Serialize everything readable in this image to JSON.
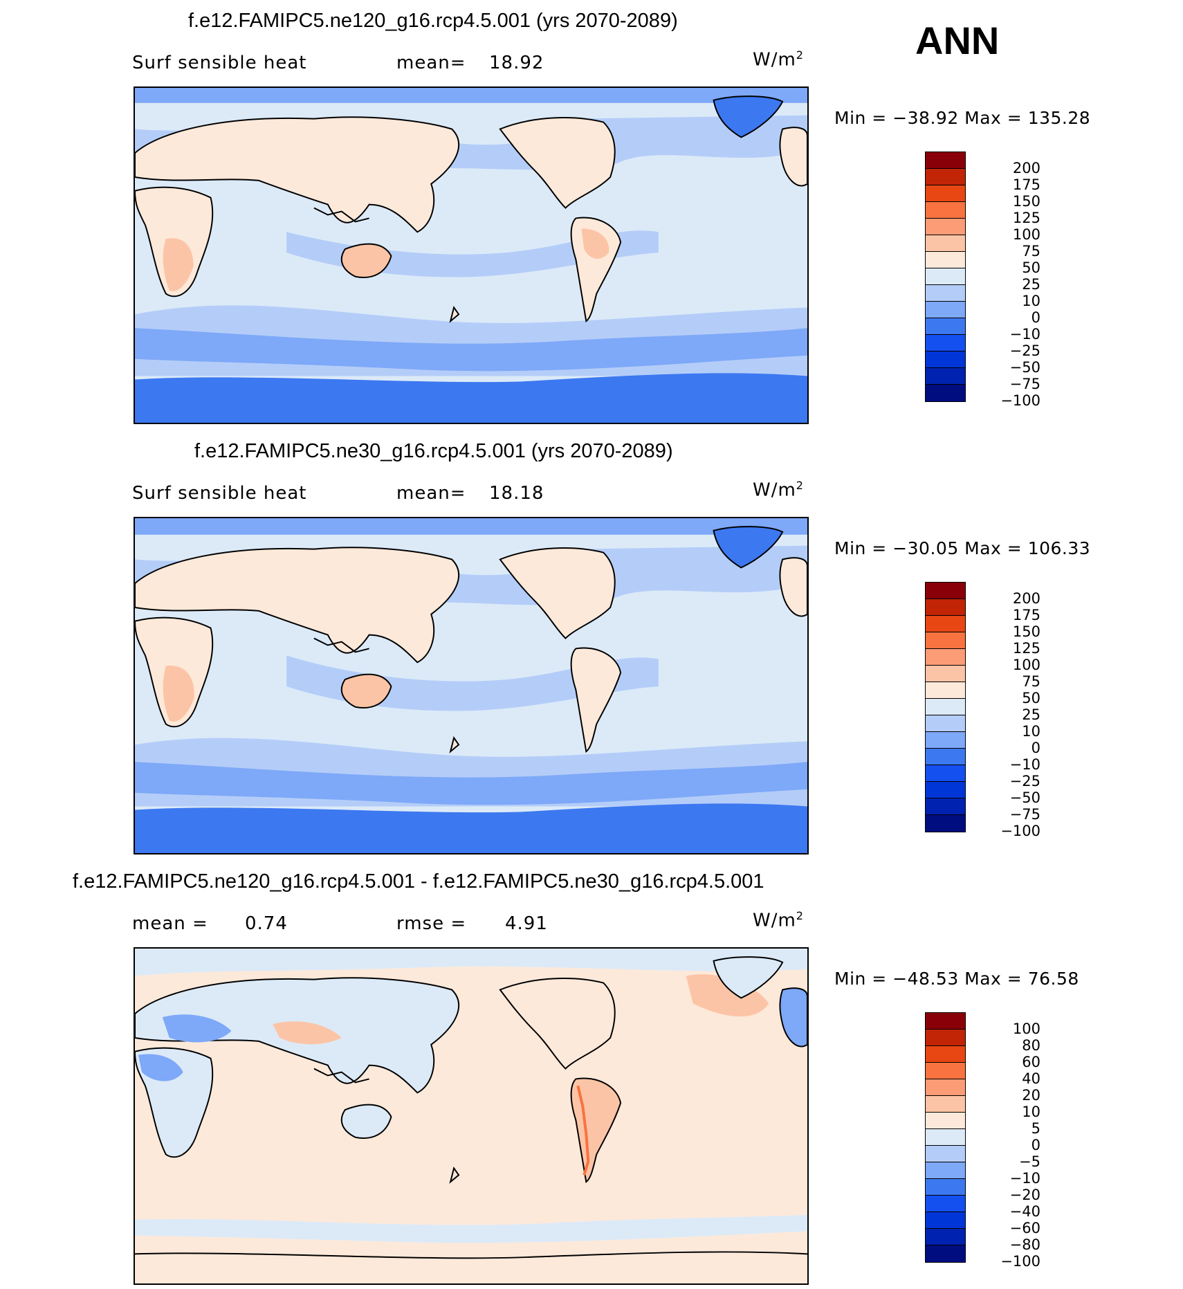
{
  "season": "ANN",
  "colorbar_main": [
    "#000d80",
    "#0022b0",
    "#0036d8",
    "#1450f0",
    "#3c78f0",
    "#7ea8f8",
    "#b4cdf8",
    "#dceaf8",
    "#fde9da",
    "#fcc4a6",
    "#fb9c76",
    "#f8733f",
    "#e84612",
    "#c22406",
    "#8a0008"
  ],
  "colorbar_diff": [
    "#000d80",
    "#0022b0",
    "#0036d8",
    "#1450f0",
    "#3c78f0",
    "#7ea8f8",
    "#b4cdf8",
    "#dceaf8",
    "#fde9da",
    "#fcc4a6",
    "#fb9c76",
    "#f8733f",
    "#e84612",
    "#c22406",
    "#8a0008"
  ],
  "panels": [
    {
      "title": "f.e12.FAMIPC5.ne120_g16.rcp4.5.001 (yrs 2070-2089)",
      "left_label": "Surf sensible heat",
      "mid_label": "mean=",
      "mid_value": "18.92",
      "units": "W/m",
      "units_sup": "2",
      "minmax": "Min = −38.92 Max = 135.28",
      "ticks": [
        "200",
        "175",
        "150",
        "125",
        "100",
        "75",
        "50",
        "25",
        "10",
        "0",
        "−10",
        "−25",
        "−50",
        "−75",
        "−100"
      ]
    },
    {
      "title": "f.e12.FAMIPC5.ne30_g16.rcp4.5.001 (yrs 2070-2089)",
      "left_label": "Surf sensible heat",
      "mid_label": "mean=",
      "mid_value": "18.18",
      "units": "W/m",
      "units_sup": "2",
      "minmax": "Min = −30.05 Max = 106.33",
      "ticks": [
        "200",
        "175",
        "150",
        "125",
        "100",
        "75",
        "50",
        "25",
        "10",
        "0",
        "−10",
        "−25",
        "−50",
        "−75",
        "−100"
      ]
    },
    {
      "title": "f.e12.FAMIPC5.ne120_g16.rcp4.5.001 - f.e12.FAMIPC5.ne30_g16.rcp4.5.001",
      "left_label": "mean =",
      "left_value": "0.74",
      "mid_label": "rmse =",
      "mid_value": "4.91",
      "units": "W/m",
      "units_sup": "2",
      "minmax": "Min = −48.53 Max =  76.58",
      "ticks": [
        "100",
        "80",
        "60",
        "40",
        "20",
        "10",
        "5",
        "0",
        "−5",
        "−10",
        "−20",
        "−40",
        "−60",
        "−80",
        "−100"
      ]
    }
  ]
}
